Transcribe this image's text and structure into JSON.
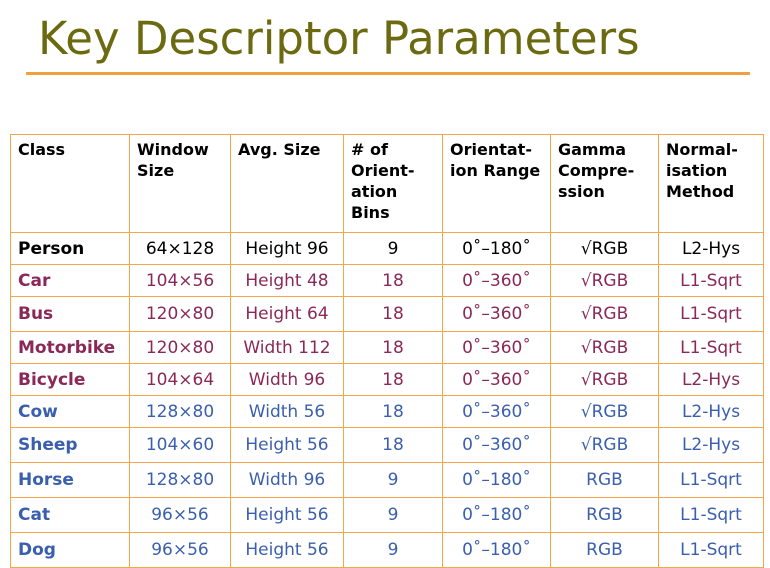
{
  "title": "Key Descriptor Parameters",
  "colors": {
    "title": "#6b6a10",
    "accent_rule": "#f0a040",
    "table_border": "#f5a54a",
    "row_black": "#000000",
    "row_purple": "#8a2858",
    "row_blue": "#3a5fae"
  },
  "table": {
    "headers": [
      "Class",
      "Window Size",
      "Avg. Size",
      "# of Orient-ation Bins",
      "Orientat-ion Range",
      "Gamma Compre-ssion",
      "Normal-isation Method"
    ],
    "rows": [
      {
        "cells": [
          "Person",
          "64×128",
          "Height 96",
          "9",
          "0˚–180˚",
          "√RGB",
          "L2-Hys"
        ],
        "color": "black"
      },
      {
        "cells": [
          "Car",
          "104×56",
          "Height 48",
          "18",
          "0˚–360˚",
          "√RGB",
          "L1-Sqrt"
        ],
        "color": "purple"
      },
      {
        "cells": [
          "Bus",
          "120×80",
          "Height 64",
          "18",
          "0˚–360˚",
          "√RGB",
          "L1-Sqrt"
        ],
        "color": "purple"
      },
      {
        "cells": [
          "Motorbike",
          "120×80",
          "Width 112",
          "18",
          "0˚–360˚",
          "√RGB",
          "L1-Sqrt"
        ],
        "color": "purple"
      },
      {
        "cells": [
          "Bicycle",
          "104×64",
          "Width 96",
          "18",
          "0˚–360˚",
          "√RGB",
          "L2-Hys"
        ],
        "color": "purple"
      },
      {
        "cells": [
          "Cow",
          "128×80",
          "Width 56",
          "18",
          "0˚–360˚",
          "√RGB",
          "L2-Hys"
        ],
        "color": "blue"
      },
      {
        "cells": [
          "Sheep",
          "104×60",
          "Height 56",
          "18",
          "0˚–360˚",
          "√RGB",
          "L2-Hys"
        ],
        "color": "blue"
      },
      {
        "cells": [
          "Horse",
          "128×80",
          "Width 96",
          "9",
          "0˚–180˚",
          "RGB",
          "L1-Sqrt"
        ],
        "color": "blue"
      },
      {
        "cells": [
          "Cat",
          "96×56",
          "Height 56",
          "9",
          "0˚–180˚",
          "RGB",
          "L1-Sqrt"
        ],
        "color": "blue"
      },
      {
        "cells": [
          "Dog",
          "96×56",
          "Height 56",
          "9",
          "0˚–180˚",
          "RGB",
          "L1-Sqrt"
        ],
        "color": "blue"
      }
    ]
  }
}
